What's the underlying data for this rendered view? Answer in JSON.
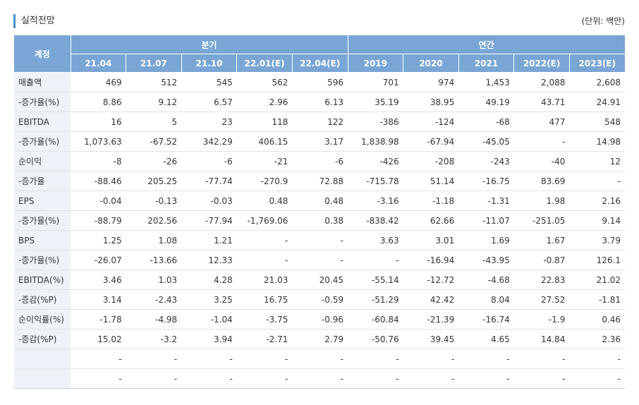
{
  "title": "실적전망",
  "unit": "(단위: 백만)",
  "table": {
    "account_header": "계정",
    "group_quarterly": "분기",
    "group_annual": "연간",
    "periods": [
      "21.04",
      "21.07",
      "21.10",
      "22.01(E)",
      "22.04(E)",
      "2019",
      "2020",
      "2021",
      "2022(E)",
      "2023(E)"
    ],
    "rows": [
      {
        "label": "매출액",
        "values": [
          "469",
          "512",
          "545",
          "562",
          "596",
          "701",
          "974",
          "1,453",
          "2,088",
          "2,608"
        ]
      },
      {
        "label": "-증가율(%)",
        "values": [
          "8.86",
          "9.12",
          "6.57",
          "2.96",
          "6.13",
          "35.19",
          "38.95",
          "49.19",
          "43.71",
          "24.91"
        ]
      },
      {
        "label": "EBITDA",
        "values": [
          "16",
          "5",
          "23",
          "118",
          "122",
          "-386",
          "-124",
          "-68",
          "477",
          "548"
        ]
      },
      {
        "label": "-증가율(%)",
        "values": [
          "1,073.63",
          "-67.52",
          "342.29",
          "406.15",
          "3.17",
          "1,838.98",
          "-67.94",
          "-45.05",
          "-",
          "14.98"
        ]
      },
      {
        "label": "순이익",
        "values": [
          "-8",
          "-26",
          "-6",
          "-21",
          "-6",
          "-426",
          "-208",
          "-243",
          "-40",
          "12"
        ]
      },
      {
        "label": "-증가율",
        "values": [
          "-88.46",
          "205.25",
          "-77.74",
          "-270.9",
          "72.88",
          "-715.78",
          "51.14",
          "-16.75",
          "83.69",
          "-"
        ]
      },
      {
        "label": "EPS",
        "values": [
          "-0.04",
          "-0.13",
          "-0.03",
          "0.48",
          "0.48",
          "-3.16",
          "-1.18",
          "-1.31",
          "1.98",
          "2.16"
        ]
      },
      {
        "label": "-증가율(%)",
        "values": [
          "-88.79",
          "202.56",
          "-77.94",
          "-1,769.06",
          "0.38",
          "-838.42",
          "62.66",
          "-11.07",
          "-251.05",
          "9.14"
        ]
      },
      {
        "label": "BPS",
        "values": [
          "1.25",
          "1.08",
          "1.21",
          "-",
          "-",
          "3.63",
          "3.01",
          "1.69",
          "1.67",
          "3.79"
        ]
      },
      {
        "label": "-증가율(%)",
        "values": [
          "-26.07",
          "-13.66",
          "12.33",
          "-",
          "-",
          "-",
          "-16.94",
          "-43.95",
          "-0.87",
          "126.1"
        ]
      },
      {
        "label": "EBITDA(%)",
        "values": [
          "3.46",
          "1.03",
          "4.28",
          "21.03",
          "20.45",
          "-55.14",
          "-12.72",
          "-4.68",
          "22.83",
          "21.02"
        ]
      },
      {
        "label": "-증감(%P)",
        "values": [
          "3.14",
          "-2.43",
          "3.25",
          "16.75",
          "-0.59",
          "-51.29",
          "42.42",
          "8.04",
          "27.52",
          "-1.81"
        ]
      },
      {
        "label": "순이익률(%)",
        "values": [
          "-1.78",
          "-4.98",
          "-1.04",
          "-3.75",
          "-0.96",
          "-60.84",
          "-21.39",
          "-16.74",
          "-1.9",
          "0.46"
        ]
      },
      {
        "label": "-증감(%P)",
        "values": [
          "15.02",
          "-3.2",
          "3.94",
          "-2.71",
          "2.79",
          "-50.76",
          "39.45",
          "4.65",
          "14.84",
          "2.36"
        ]
      },
      {
        "label": "",
        "values": [
          "-",
          "-",
          "-",
          "-",
          "-",
          "-",
          "-",
          "-",
          "-",
          "-"
        ]
      },
      {
        "label": "",
        "values": [
          "-",
          "-",
          "-",
          "-",
          "-",
          "-",
          "-",
          "-",
          "-",
          "-"
        ]
      }
    ]
  },
  "colors": {
    "header_bg": "#7aa6d6",
    "label_bg": "#eef3f9",
    "accent": "#4a90c8"
  }
}
